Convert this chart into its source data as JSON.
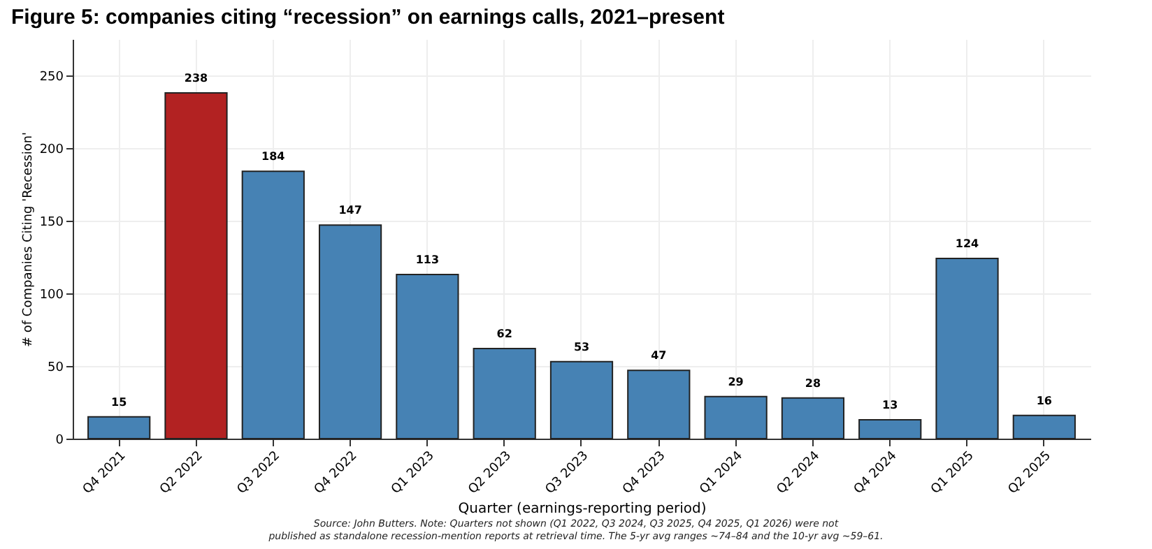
{
  "chart_data": {
    "type": "bar",
    "title": "Figure 5: companies citing “recession” on earnings calls, 2021–present",
    "xlabel": "Quarter (earnings-reporting period)",
    "ylabel": "# of Companies Citing 'Recession'",
    "categories": [
      "Q4 2021",
      "Q2 2022",
      "Q3 2022",
      "Q4 2022",
      "Q1 2023",
      "Q2 2023",
      "Q3 2023",
      "Q4 2023",
      "Q1 2024",
      "Q2 2024",
      "Q4 2024",
      "Q1 2025",
      "Q2 2025"
    ],
    "values": [
      15,
      238,
      184,
      147,
      113,
      62,
      53,
      47,
      29,
      28,
      13,
      124,
      16
    ],
    "colors": [
      "#4682b4",
      "#b22222",
      "#4682b4",
      "#4682b4",
      "#4682b4",
      "#4682b4",
      "#4682b4",
      "#4682b4",
      "#4682b4",
      "#4682b4",
      "#4682b4",
      "#4682b4",
      "#4682b4"
    ],
    "ylim": [
      0,
      275
    ],
    "yticks": [
      0,
      50,
      100,
      150,
      200,
      250
    ],
    "grid": true,
    "data_labels": true,
    "annotations": [
      "Source: John Butters. Note: Quarters not shown (Q1 2022, Q3 2024, Q3 2025, Q4 2025, Q1 2026) were not",
      "published as standalone recession-mention reports at retrieval time. The 5-yr avg ranges ~74–84 and the 10-yr avg ~59–61."
    ]
  }
}
